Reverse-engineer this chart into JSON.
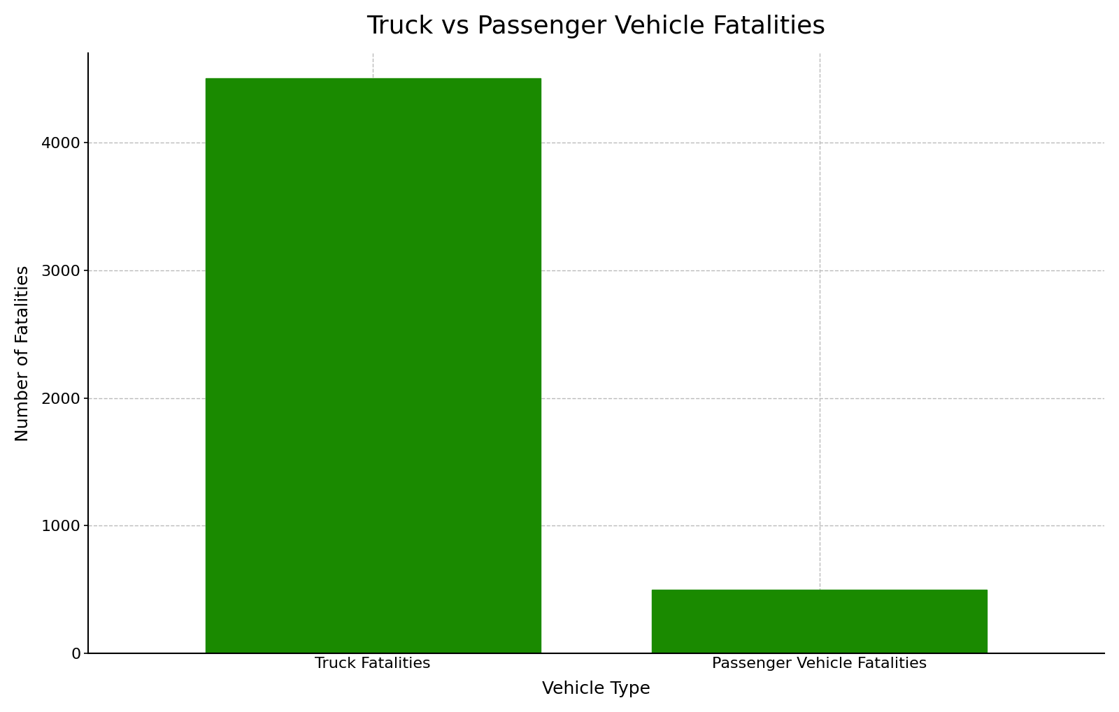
{
  "categories": [
    "Truck Fatalities",
    "Passenger Vehicle Fatalities"
  ],
  "values": [
    4500,
    500
  ],
  "bar_color": "#1a8a00",
  "title": "Truck vs Passenger Vehicle Fatalities",
  "xlabel": "Vehicle Type",
  "ylabel": "Number of Fatalities",
  "ylim": [
    0,
    4700
  ],
  "yticks": [
    0,
    1000,
    2000,
    3000,
    4000
  ],
  "title_fontsize": 26,
  "label_fontsize": 18,
  "tick_fontsize": 16,
  "grid_color": "#bbbbbb",
  "background_color": "#ffffff",
  "bar_width": 0.75
}
